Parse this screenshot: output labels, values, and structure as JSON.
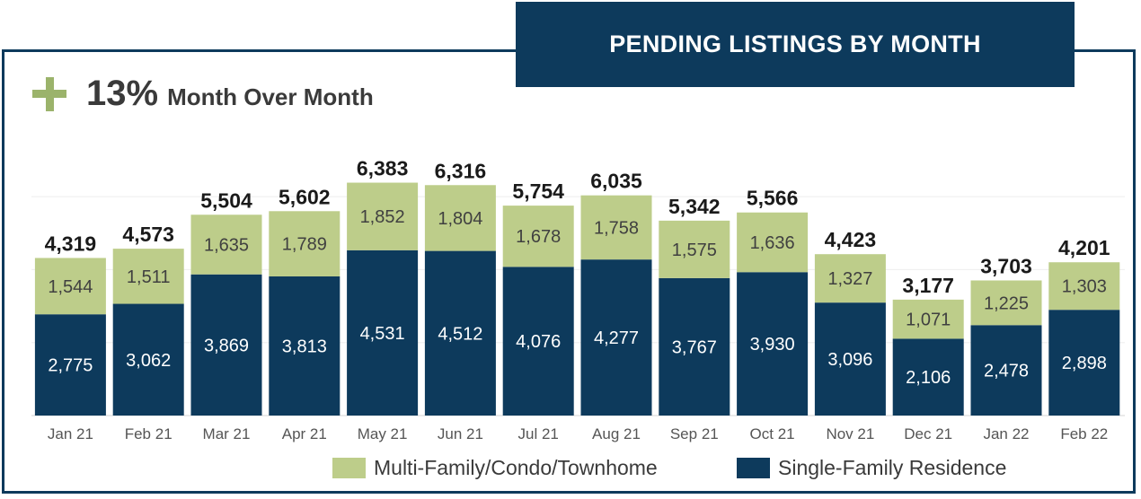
{
  "header": {
    "title": "PENDING LISTINGS BY MONTH"
  },
  "kpi": {
    "value": "13%",
    "label": "Month Over Month",
    "icon": "plus-icon"
  },
  "colors": {
    "single_family": "#0d3a5c",
    "multi_family": "#bdcd8a",
    "frame": "#0d3a5c",
    "plus": "#9bb36b"
  },
  "legend": [
    {
      "name": "Multi-Family/Condo/Townhome",
      "color": "#bdcd8a"
    },
    {
      "name": "Single-Family Residence",
      "color": "#0d3a5c"
    }
  ],
  "chart_data": {
    "type": "bar",
    "stacked": true,
    "categories": [
      "Jan 21",
      "Feb 21",
      "Mar 21",
      "Apr 21",
      "May 21",
      "Jun 21",
      "Jul 21",
      "Aug 21",
      "Sep 21",
      "Oct 21",
      "Nov 21",
      "Dec 21",
      "Jan 22",
      "Feb 22"
    ],
    "series": [
      {
        "name": "Single-Family Residence",
        "values": [
          2775,
          3062,
          3869,
          3813,
          4531,
          4512,
          4076,
          4277,
          3767,
          3930,
          3096,
          2106,
          2478,
          2898
        ]
      },
      {
        "name": "Multi-Family/Condo/Townhome",
        "values": [
          1544,
          1511,
          1635,
          1789,
          1852,
          1804,
          1678,
          1758,
          1575,
          1636,
          1327,
          1071,
          1225,
          1303
        ]
      }
    ],
    "totals": [
      4319,
      4573,
      5504,
      5602,
      6383,
      6316,
      5754,
      6035,
      5342,
      5566,
      4423,
      3177,
      3703,
      4201
    ],
    "ylim": [
      0,
      7700
    ],
    "grid": true,
    "legend_position": "bottom-right"
  }
}
